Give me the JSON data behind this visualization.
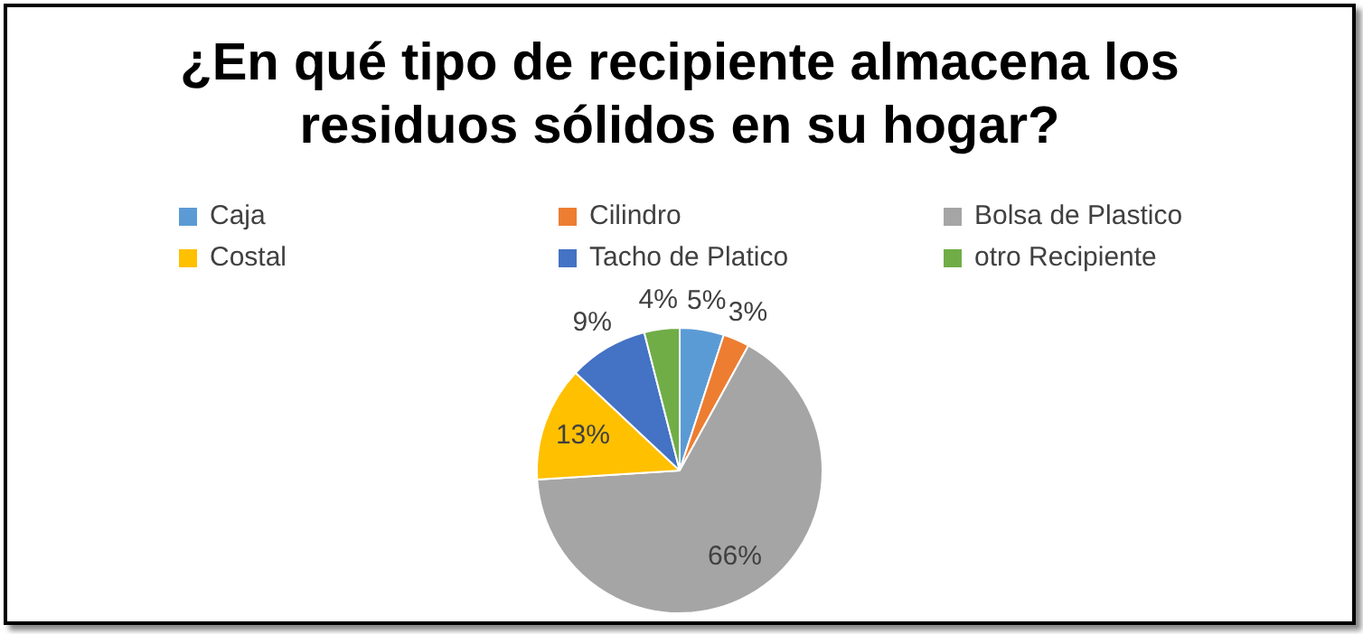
{
  "chart_data": {
    "type": "pie",
    "title": "¿En qué tipo de recipiente almacena los residuos sólidos en su hogar?",
    "categories": [
      "Caja",
      "Cilindro",
      "Bolsa de Plastico",
      "Costal",
      "Tacho de Platico",
      "otro Recipiente"
    ],
    "values": [
      5,
      3,
      66,
      13,
      9,
      4
    ],
    "value_labels": [
      "5%",
      "3%",
      "66%",
      "13%",
      "9%",
      "4%"
    ],
    "colors": [
      "#5b9bd5",
      "#ed7d31",
      "#a5a5a5",
      "#ffc000",
      "#4472c4",
      "#70ad47"
    ],
    "legend": "top"
  }
}
